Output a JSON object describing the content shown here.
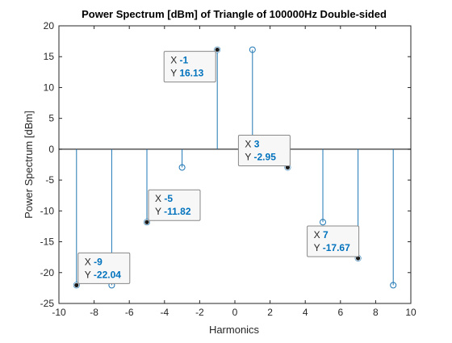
{
  "chart_data": {
    "type": "stem",
    "title": "Power Spectrum [dBm] of Triangle of 100000Hz Double-sided",
    "xlabel": "Harmonics",
    "ylabel": "Power Spectrum [dBm]",
    "xlim": [
      -10,
      10
    ],
    "ylim": [
      -25,
      20
    ],
    "xticks": [
      -10,
      -8,
      -6,
      -4,
      -2,
      0,
      2,
      4,
      6,
      8,
      10
    ],
    "yticks": [
      -25,
      -20,
      -15,
      -10,
      -5,
      0,
      5,
      10,
      15,
      20
    ],
    "grid": false,
    "colors": {
      "stem": "#1f77b4",
      "axis": "#262626",
      "datatip_value": "#0072bd"
    },
    "series": [
      {
        "x": [
          -9,
          -7,
          -5,
          -3,
          -1,
          1,
          3,
          5,
          7,
          9
        ],
        "values": [
          -22.04,
          -22.04,
          -11.82,
          -2.95,
          16.13,
          16.13,
          -2.95,
          -11.82,
          -17.67,
          -22.04
        ]
      }
    ],
    "datatips": [
      {
        "x_label": "X",
        "x_value": "-1",
        "y_label": "Y",
        "y_value": "16.13"
      },
      {
        "x_label": "X",
        "x_value": "3",
        "y_label": "Y",
        "y_value": "-2.95"
      },
      {
        "x_label": "X",
        "x_value": "-5",
        "y_label": "Y",
        "y_value": "-11.82"
      },
      {
        "x_label": "X",
        "x_value": "7",
        "y_label": "Y",
        "y_value": "-17.67"
      },
      {
        "x_label": "X",
        "x_value": "-9",
        "y_label": "Y",
        "y_value": "-22.04"
      }
    ]
  }
}
